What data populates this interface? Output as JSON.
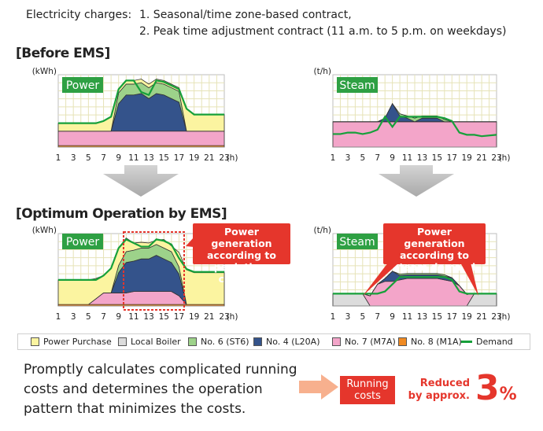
{
  "header": {
    "label": "Electricity charges:",
    "item1": "1. Seasonal/time zone-based contract,",
    "item2": "2. Peak time adjustment contract (11 a.m. to 5 p.m. on weekdays)"
  },
  "sections": {
    "before": "[Before EMS]",
    "after": "[Optimum Operation by EMS]"
  },
  "colors": {
    "power_purchase": "#fbf4a0",
    "local_boiler": "#dcdcdc",
    "no6": "#9dd28a",
    "no4": "#34538b",
    "no7": "#f3a5c9",
    "no8": "#f08a22",
    "demand": "#16a03a",
    "grid": "#e6e3b8",
    "callout": "#e5362c",
    "accent": "#ea3a26"
  },
  "chart_data": [
    {
      "type": "area",
      "panel": "Power",
      "stage": "Before EMS",
      "ylabel": "(kWh)",
      "xlabel": "(h)",
      "xticks": [
        "1",
        "3",
        "5",
        "7",
        "9",
        "11",
        "13",
        "15",
        "17",
        "19",
        "21",
        "23"
      ],
      "x": [
        1,
        2,
        3,
        4,
        5,
        6,
        7,
        8,
        9,
        10,
        11,
        12,
        13,
        14,
        15,
        16,
        17,
        18,
        19,
        20,
        21,
        23
      ],
      "ylim": [
        0,
        100
      ],
      "series": [
        {
          "name": "No. 8 (M1A)",
          "values": [
            2,
            2,
            2,
            2,
            2,
            2,
            2,
            2,
            2,
            2,
            2,
            2,
            2,
            2,
            2,
            2,
            2,
            2,
            2,
            2,
            2,
            2
          ]
        },
        {
          "name": "No. 7 (M7A)",
          "values": [
            20,
            20,
            20,
            20,
            20,
            20,
            20,
            20,
            20,
            20,
            20,
            20,
            20,
            20,
            20,
            20,
            20,
            20,
            20,
            20,
            20,
            20
          ]
        },
        {
          "name": "No. 4 (L20A)",
          "values": [
            0,
            0,
            0,
            0,
            0,
            0,
            0,
            0,
            38,
            50,
            50,
            52,
            45,
            52,
            50,
            45,
            40,
            0,
            0,
            0,
            0,
            0
          ]
        },
        {
          "name": "No. 6 (ST6)",
          "values": [
            0,
            0,
            0,
            0,
            0,
            0,
            0,
            0,
            15,
            15,
            15,
            15,
            15,
            15,
            15,
            15,
            15,
            0,
            0,
            0,
            0,
            0
          ]
        },
        {
          "name": "Power Purchase",
          "values": [
            11,
            11,
            11,
            11,
            11,
            11,
            14,
            20,
            5,
            5,
            5,
            5,
            5,
            5,
            5,
            5,
            5,
            31,
            23,
            23,
            23,
            23
          ]
        }
      ],
      "demand": [
        33,
        33,
        33,
        33,
        33,
        33,
        36,
        42,
        80,
        92,
        92,
        76,
        72,
        92,
        90,
        85,
        80,
        53,
        45,
        45,
        45,
        45
      ]
    },
    {
      "type": "area",
      "panel": "Steam",
      "stage": "Before EMS",
      "ylabel": "(t/h)",
      "xlabel": "(h)",
      "xticks": [
        "1",
        "3",
        "5",
        "7",
        "9",
        "11",
        "13",
        "15",
        "17",
        "19",
        "21",
        "23"
      ],
      "x": [
        1,
        2,
        3,
        4,
        5,
        6,
        7,
        8,
        9,
        10,
        11,
        12,
        13,
        14,
        15,
        16,
        17,
        18,
        19,
        20,
        21,
        23
      ],
      "ylim": [
        0,
        100
      ],
      "series": [
        {
          "name": "Local Boiler",
          "values": [
            0,
            0,
            0,
            0,
            0,
            0,
            0,
            0,
            0,
            0,
            0,
            0,
            0,
            0,
            0,
            0,
            0,
            0,
            0,
            0,
            0,
            0
          ]
        },
        {
          "name": "No. 7 (M7A)",
          "values": [
            35,
            35,
            35,
            35,
            35,
            35,
            35,
            35,
            35,
            35,
            35,
            35,
            35,
            35,
            35,
            35,
            35,
            35,
            35,
            35,
            35,
            35
          ]
        },
        {
          "name": "No. 4 (L20A)",
          "values": [
            0,
            0,
            0,
            0,
            0,
            0,
            0,
            5,
            25,
            8,
            5,
            0,
            5,
            5,
            5,
            0,
            0,
            0,
            0,
            0,
            0,
            0
          ]
        },
        {
          "name": "No. 6 (ST6)",
          "values": [
            0,
            0,
            0,
            0,
            0,
            0,
            0,
            0,
            0,
            3,
            3,
            5,
            3,
            3,
            3,
            3,
            0,
            0,
            0,
            0,
            0,
            0
          ]
        }
      ],
      "demand": [
        18,
        18,
        20,
        20,
        18,
        20,
        24,
        42,
        28,
        42,
        42,
        42,
        42,
        42,
        42,
        40,
        36,
        20,
        17,
        17,
        15,
        17
      ]
    },
    {
      "type": "area",
      "panel": "Power",
      "stage": "Optimum Operation by EMS",
      "ylabel": "(kWh)",
      "xlabel": "(h)",
      "xticks": [
        "1",
        "3",
        "5",
        "7",
        "9",
        "11",
        "13",
        "15",
        "17",
        "19",
        "21",
        "23"
      ],
      "x": [
        1,
        2,
        3,
        4,
        5,
        6,
        7,
        8,
        9,
        10,
        11,
        12,
        13,
        14,
        15,
        16,
        17,
        18,
        19,
        20,
        21,
        23
      ],
      "ylim": [
        0,
        100
      ],
      "series": [
        {
          "name": "No. 8 (M1A)",
          "values": [
            2,
            2,
            2,
            2,
            2,
            2,
            2,
            2,
            2,
            2,
            2,
            2,
            2,
            2,
            2,
            2,
            2,
            2,
            2,
            2,
            2,
            2
          ]
        },
        {
          "name": "No. 7 (M7A)",
          "values": [
            0,
            0,
            0,
            0,
            0,
            8,
            16,
            16,
            16,
            16,
            18,
            18,
            18,
            18,
            18,
            18,
            12,
            0,
            0,
            0,
            0,
            0
          ]
        },
        {
          "name": "No. 4 (L20A)",
          "values": [
            0,
            0,
            0,
            0,
            0,
            0,
            0,
            0,
            28,
            42,
            42,
            45,
            45,
            50,
            45,
            40,
            30,
            0,
            0,
            0,
            0,
            0
          ]
        },
        {
          "name": "No. 6 (ST6)",
          "values": [
            0,
            0,
            0,
            0,
            0,
            0,
            0,
            0,
            10,
            15,
            15,
            15,
            15,
            15,
            15,
            15,
            10,
            0,
            0,
            0,
            0,
            0
          ]
        },
        {
          "name": "Power Purchase",
          "values": [
            34,
            34,
            34,
            34,
            34,
            28,
            24,
            34,
            24,
            19,
            10,
            8,
            7,
            6,
            12,
            8,
            20,
            48,
            44,
            44,
            44,
            44
          ]
        }
      ],
      "demand": [
        36,
        36,
        36,
        36,
        36,
        36,
        42,
        52,
        80,
        92,
        87,
        82,
        82,
        92,
        90,
        85,
        66,
        51,
        47,
        47,
        47,
        47
      ]
    },
    {
      "type": "area",
      "panel": "Steam",
      "stage": "Optimum Operation by EMS",
      "ylabel": "(t/h)",
      "xlabel": "(h)",
      "xticks": [
        "1",
        "3",
        "5",
        "7",
        "9",
        "11",
        "13",
        "15",
        "17",
        "19",
        "21",
        "23"
      ],
      "x": [
        1,
        2,
        3,
        4,
        5,
        6,
        7,
        8,
        9,
        10,
        11,
        12,
        13,
        14,
        15,
        16,
        17,
        18,
        19,
        20,
        21,
        23
      ],
      "ylim": [
        0,
        100
      ],
      "series": [
        {
          "name": "Local Boiler",
          "values": [
            17,
            17,
            17,
            17,
            17,
            0,
            0,
            0,
            0,
            0,
            0,
            0,
            0,
            0,
            0,
            0,
            0,
            0,
            0,
            17,
            17,
            17
          ]
        },
        {
          "name": "No. 7 (M7A)",
          "values": [
            0,
            0,
            0,
            0,
            0,
            14,
            30,
            34,
            34,
            36,
            38,
            38,
            38,
            38,
            38,
            36,
            34,
            28,
            16,
            0,
            0,
            0
          ]
        },
        {
          "name": "No. 4 (L20A)",
          "values": [
            0,
            0,
            0,
            0,
            0,
            0,
            0,
            4,
            14,
            6,
            5,
            5,
            5,
            5,
            5,
            5,
            5,
            0,
            0,
            0,
            0,
            0
          ]
        },
        {
          "name": "No. 6 (ST6)",
          "values": [
            0,
            0,
            0,
            0,
            0,
            0,
            0,
            0,
            0,
            2,
            2,
            2,
            2,
            2,
            2,
            2,
            0,
            0,
            0,
            0,
            0,
            0
          ]
        }
      ],
      "demand": [
        17,
        17,
        17,
        17,
        17,
        17,
        17,
        20,
        30,
        40,
        40,
        40,
        40,
        40,
        40,
        40,
        36,
        20,
        17,
        17,
        17,
        17
      ]
    }
  ],
  "panels": {
    "power_before_label": "Power",
    "steam_before_label": "Steam",
    "power_after_label": "Power",
    "steam_after_label": "Steam"
  },
  "callouts": {
    "power": "Power generation according to peak time contract",
    "steam": "Power generation according to steam demand"
  },
  "legend": [
    {
      "name": "Power Purchase",
      "color": "#fbf4a0"
    },
    {
      "name": "Local Boiler",
      "color": "#dcdcdc"
    },
    {
      "name": "No. 6 (ST6)",
      "color": "#9dd28a"
    },
    {
      "name": "No. 4 (L20A)",
      "color": "#34538b"
    },
    {
      "name": "No. 7 (M7A)",
      "color": "#f3a5c9"
    },
    {
      "name": "No. 8 (M1A)",
      "color": "#f08a22"
    },
    {
      "name": "Demand",
      "color": "#16a03a",
      "line": true
    }
  ],
  "footer": {
    "description": "Promptly calculates complicated running costs and determines the operation pattern that minimizes the costs.",
    "box_label": "Running costs",
    "reduced_label": "Reduced by approx.",
    "reduced_value": "3",
    "reduced_unit": "%"
  }
}
